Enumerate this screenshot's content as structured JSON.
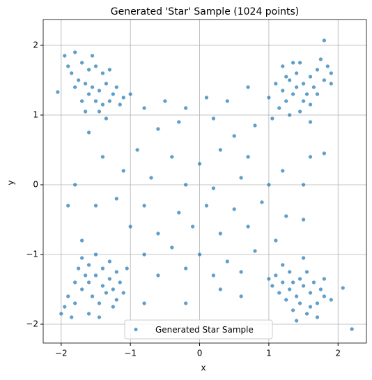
{
  "chart_data": {
    "type": "scatter",
    "title": "Generated 'Star' Sample (1024 points)",
    "x_label": "x",
    "y_label": "y",
    "xlim": [
      -2.26,
      2.41
    ],
    "ylim": [
      -2.27,
      2.37
    ],
    "xticks": [
      {
        "value": -2,
        "label": "−2"
      },
      {
        "value": -1,
        "label": "−1"
      },
      0,
      1,
      2
    ],
    "yticks": [
      {
        "value": -2,
        "label": "−2"
      },
      {
        "value": -1,
        "label": "−1"
      },
      0,
      1,
      2
    ],
    "grid": true,
    "legend": "lower center",
    "x": [
      -1.95,
      -1.8,
      -1.7,
      -1.6,
      -1.5,
      -1.4,
      -1.85,
      -1.75,
      -1.65,
      -1.55,
      -1.45,
      -1.35,
      -1.25,
      -1.3,
      -1.2,
      -1.1,
      -1.5,
      -1.6,
      -1.4,
      -1.7,
      -1.9,
      -1.55,
      -1.3,
      -1.15,
      -1.0,
      -1.45,
      -1.8,
      -2.05,
      -1.65,
      -1.35,
      1.2,
      1.3,
      1.4,
      1.5,
      1.6,
      1.7,
      1.8,
      1.9,
      1.45,
      1.35,
      1.25,
      1.15,
      1.55,
      1.65,
      1.75,
      1.85,
      1.1,
      1.3,
      1.5,
      1.6,
      1.4,
      1.2,
      1.0,
      1.8,
      1.7,
      1.05,
      1.45,
      1.9,
      1.35,
      1.25,
      -1.9,
      -1.8,
      -1.7,
      -1.6,
      -1.5,
      -1.4,
      -1.3,
      -1.2,
      -1.55,
      -1.45,
      -1.65,
      -1.75,
      -1.35,
      -1.25,
      -1.15,
      -1.05,
      -1.85,
      -1.95,
      -1.6,
      -1.4,
      -1.3,
      -1.5,
      -1.7,
      -1.2,
      -1.1,
      -2.0,
      -1.8,
      -1.45,
      -1.25,
      -1.6,
      1.1,
      1.2,
      1.3,
      1.4,
      1.5,
      1.6,
      1.7,
      1.8,
      1.25,
      1.35,
      1.45,
      1.55,
      1.65,
      1.75,
      1.15,
      1.05,
      1.4,
      1.55,
      1.9,
      1.3,
      1.2,
      1.5,
      1.6,
      1.7,
      1.0,
      2.07,
      2.2,
      1.45,
      1.35,
      1.8,
      -0.8,
      -0.5,
      -0.2,
      0.1,
      0.4,
      0.7,
      -0.6,
      -0.3,
      0.2,
      0.5,
      0.8,
      -0.9,
      -0.4,
      0.0,
      0.3,
      0.7,
      -1.1,
      -0.7,
      -0.2,
      0.2,
      0.6,
      1.0,
      1.2,
      -1.2,
      -0.8,
      -0.3,
      0.1,
      0.5,
      0.9,
      1.25,
      -1.0,
      -0.6,
      -0.1,
      0.3,
      0.7,
      1.1,
      -0.8,
      -0.4,
      0.0,
      0.4,
      0.8,
      -0.6,
      -0.2,
      0.2,
      0.6,
      -0.8,
      -0.2,
      0.3,
      0.6,
      -1.6,
      -1.8,
      -1.5,
      -1.7,
      1.6,
      1.8,
      1.5,
      1.6,
      1.5,
      -1.4,
      -1.9
    ],
    "series": [
      {
        "name": "Generated Star Sample",
        "color": "#1f77b4",
        "values": [
          1.85,
          1.9,
          1.75,
          1.65,
          1.7,
          1.6,
          1.6,
          1.5,
          1.45,
          1.4,
          1.35,
          1.45,
          1.3,
          1.2,
          1.4,
          1.25,
          1.2,
          1.3,
          1.15,
          1.2,
          1.7,
          1.85,
          1.65,
          1.15,
          1.3,
          1.05,
          1.4,
          1.33,
          1.05,
          0.95,
          1.35,
          1.5,
          1.6,
          1.45,
          1.55,
          1.65,
          1.5,
          1.6,
          1.75,
          1.3,
          1.2,
          1.1,
          1.3,
          1.4,
          1.8,
          1.7,
          1.45,
          1.0,
          1.2,
          1.15,
          1.4,
          1.7,
          1.25,
          2.07,
          1.3,
          0.95,
          1.05,
          1.45,
          1.75,
          1.55,
          -1.6,
          -1.7,
          -1.5,
          -1.4,
          -1.3,
          -1.45,
          -1.35,
          -1.25,
          -1.6,
          -1.7,
          -1.3,
          -1.2,
          -1.55,
          -1.5,
          -1.4,
          -1.2,
          -1.9,
          -1.75,
          -1.85,
          -1.2,
          -1.1,
          -1.0,
          -1.05,
          -1.65,
          -1.55,
          -1.85,
          -1.4,
          -1.9,
          -1.75,
          -1.15,
          -1.3,
          -1.4,
          -1.5,
          -1.6,
          -1.45,
          -1.55,
          -1.7,
          -1.6,
          -1.65,
          -1.8,
          -1.35,
          -1.25,
          -1.4,
          -1.5,
          -1.55,
          -1.45,
          -1.95,
          -1.85,
          -1.65,
          -1.25,
          -1.15,
          -1.05,
          -1.75,
          -1.9,
          -1.35,
          -1.48,
          -2.07,
          -1.7,
          -1.4,
          -1.35,
          1.1,
          1.2,
          1.1,
          1.25,
          1.2,
          1.4,
          0.8,
          0.9,
          0.95,
          0.7,
          0.85,
          0.5,
          0.4,
          0.3,
          0.5,
          0.4,
          0.2,
          0.1,
          0.0,
          -0.05,
          0.1,
          0.0,
          0.2,
          -0.2,
          -0.3,
          -0.4,
          -0.3,
          -0.35,
          -0.25,
          -0.45,
          -0.6,
          -0.7,
          -0.6,
          -0.7,
          -0.6,
          -0.8,
          -1.0,
          -0.9,
          -1.0,
          -1.1,
          -0.95,
          -1.3,
          -1.2,
          -1.3,
          -1.25,
          -1.7,
          -1.7,
          -1.5,
          -1.6,
          0.75,
          0.0,
          -0.3,
          -0.8,
          0.4,
          0.45,
          -0.5,
          0.9,
          0.0,
          0.4,
          -0.3
        ]
      }
    ]
  }
}
